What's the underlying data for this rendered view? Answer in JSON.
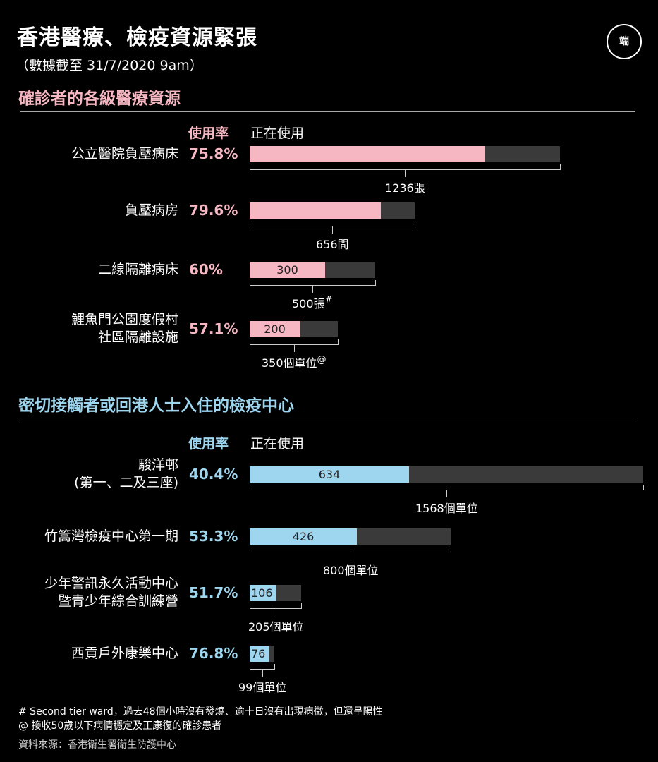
{
  "title": "香港醫療、檢疫資源緊張",
  "subtitle": "（數據截至 31/7/2020  9am）",
  "logo_text": "端",
  "chart_data": [
    {
      "type": "bar",
      "title": "確診者的各級醫療資源",
      "header_rate": "使用率",
      "header_using": "正在使用",
      "rows": [
        {
          "label": "公立醫院負壓病床",
          "rate": "75.8%",
          "used": 937,
          "total": 1236,
          "used_label": "",
          "capacity_label": "1236張",
          "capacity_mark": ""
        },
        {
          "label": "負壓病房",
          "rate": "79.6%",
          "used": 522,
          "total": 656,
          "used_label": "",
          "capacity_label": "656間",
          "capacity_mark": ""
        },
        {
          "label": "二線隔離病床",
          "rate": "60%",
          "used": 300,
          "total": 500,
          "used_label": "300",
          "capacity_label": "500張",
          "capacity_mark": "#"
        },
        {
          "label": "鯉魚門公園度假村\n社區隔離設施",
          "rate": "57.1%",
          "used": 200,
          "total": 350,
          "used_label": "200",
          "capacity_label": "350個單位",
          "capacity_mark": "@"
        }
      ]
    },
    {
      "type": "bar",
      "title": "密切接觸者或回港人士入住的檢疫中心",
      "header_rate": "使用率",
      "header_using": "正在使用",
      "rows": [
        {
          "label": "駿洋邨\n(第一、二及三座)",
          "rate": "40.4%",
          "used": 634,
          "total": 1568,
          "used_label": "634",
          "capacity_label": "1568個單位",
          "capacity_mark": ""
        },
        {
          "label": "竹篙灣檢疫中心第一期",
          "rate": "53.3%",
          "used": 426,
          "total": 800,
          "used_label": "426",
          "capacity_label": "800個單位",
          "capacity_mark": ""
        },
        {
          "label": "少年警訊永久活動中心\n暨青少年綜合訓練營",
          "rate": "51.7%",
          "used": 106,
          "total": 205,
          "used_label": "106",
          "capacity_label": "205個單位",
          "capacity_mark": ""
        },
        {
          "label": "西貢戶外康樂中心",
          "rate": "76.8%",
          "used": 76,
          "total": 99,
          "used_label": "76",
          "capacity_label": "99個單位",
          "capacity_mark": ""
        }
      ]
    }
  ],
  "footnotes": {
    "hash": "# Second tier ward，過去48個小時沒有發燒、逾十日沒有出現病徵，但還呈陽性",
    "at": "@ 接收50歲以下病情穩定及正康復的確診患者",
    "source": "資料來源：香港衛生署衛生防護中心"
  },
  "colors": {
    "pink": "#f7b7c2",
    "blue": "#9dd6ee",
    "bar_bg": "#3a3a3a"
  }
}
